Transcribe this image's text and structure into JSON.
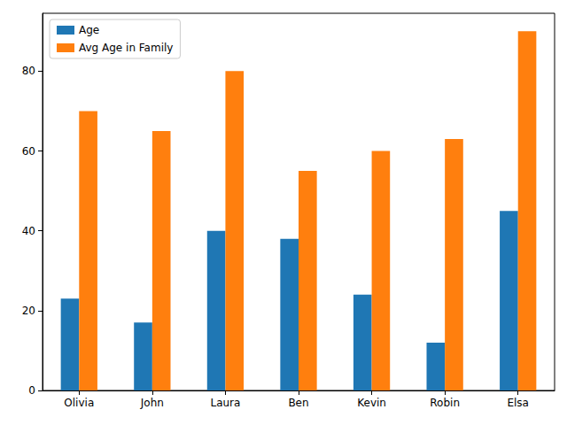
{
  "chart_data": {
    "type": "bar",
    "categories": [
      "Olivia",
      "John",
      "Laura",
      "Ben",
      "Kevin",
      "Robin",
      "Elsa"
    ],
    "series": [
      {
        "name": "Age",
        "color": "#1f77b4",
        "values": [
          23,
          17,
          40,
          38,
          24,
          12,
          45
        ]
      },
      {
        "name": "Avg Age in Family",
        "color": "#ff7f0e",
        "values": [
          70,
          65,
          80,
          55,
          60,
          63,
          90
        ]
      }
    ],
    "ylim": [
      0,
      94.5
    ],
    "yticks": [
      0,
      20,
      40,
      60,
      80
    ],
    "grid": false,
    "legend": "upper left"
  }
}
